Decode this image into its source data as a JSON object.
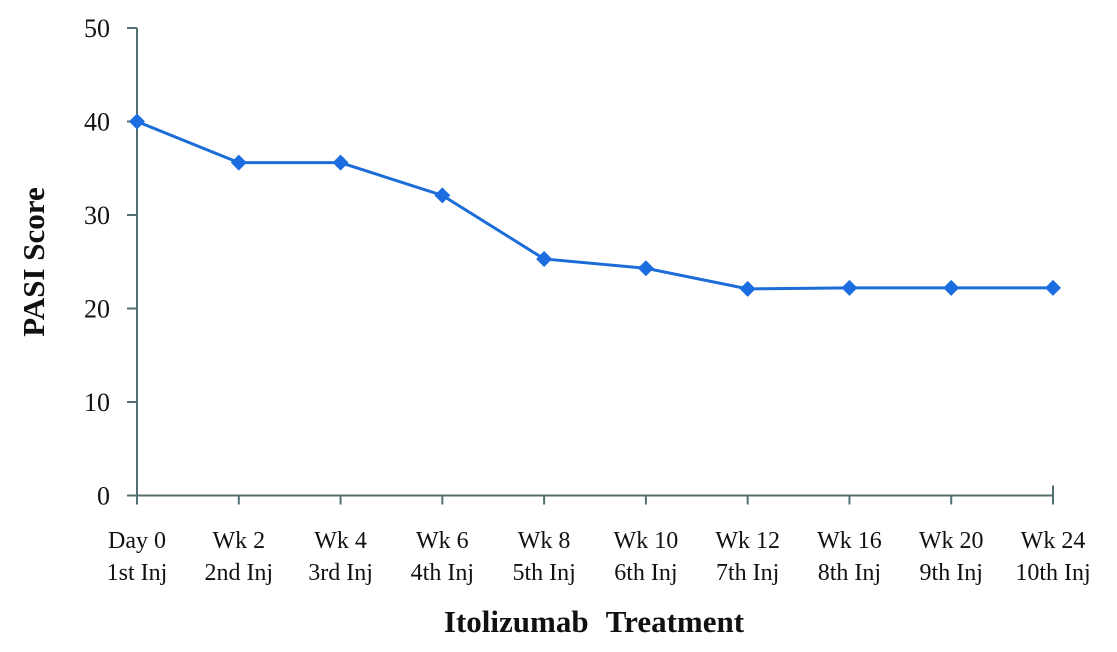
{
  "chart_data": {
    "type": "line",
    "title": "",
    "xlabel": "Itolizumab Treatment",
    "ylabel": "PASI Score",
    "ylim": [
      0,
      50
    ],
    "yticks": [
      0,
      10,
      20,
      30,
      40,
      50
    ],
    "grid": false,
    "legend": "none",
    "marker": "diamond",
    "line_color": "#1c6dd8",
    "marker_color": "#1c6de0",
    "axis_color": "#546f6f",
    "text_color": "#111111",
    "categories": [
      {
        "label": "Day 0",
        "sublabel": "1st Inj"
      },
      {
        "label": "Wk 2",
        "sublabel": "2nd Inj"
      },
      {
        "label": "Wk 4",
        "sublabel": "3rd Inj"
      },
      {
        "label": "Wk 6",
        "sublabel": "4th Inj"
      },
      {
        "label": "Wk 8",
        "sublabel": "5th Inj"
      },
      {
        "label": "Wk 10",
        "sublabel": "6th Inj"
      },
      {
        "label": "Wk 12",
        "sublabel": "7th Inj"
      },
      {
        "label": "Wk 16",
        "sublabel": "8th Inj"
      },
      {
        "label": "Wk 20",
        "sublabel": "9th Inj"
      },
      {
        "label": "Wk 24",
        "sublabel": "10th Inj"
      }
    ],
    "series": [
      {
        "name": "PASI Score",
        "values": [
          40,
          35.6,
          35.6,
          32.1,
          25.3,
          24.3,
          22.1,
          22.2,
          22.2,
          22.2
        ]
      }
    ]
  }
}
